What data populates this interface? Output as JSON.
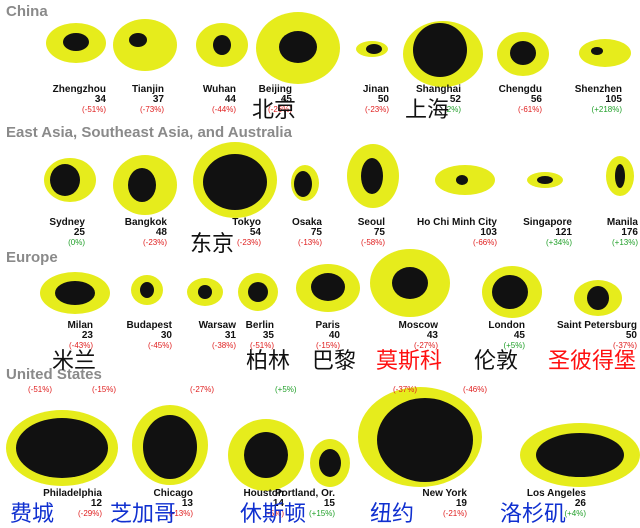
{
  "sections": {
    "china": "China",
    "asia": "East Asia, Southeast Asia, and Australia",
    "europe": "Europe",
    "us": "United States"
  },
  "cities": {
    "zhengzhou": {
      "name": "Zhengzhou",
      "value": "34",
      "change": "(-51%)",
      "trend": "neg"
    },
    "tianjin": {
      "name": "Tianjin",
      "value": "37",
      "change": "(-73%)",
      "trend": "neg"
    },
    "wuhan": {
      "name": "Wuhan",
      "value": "44",
      "change": "(-44%)",
      "trend": "neg"
    },
    "beijing": {
      "name": "Beijing",
      "value": "45",
      "change": "(-26%)",
      "trend": "neg"
    },
    "jinan": {
      "name": "Jinan",
      "value": "50",
      "change": "(-23%)",
      "trend": "neg"
    },
    "shanghai": {
      "name": "Shanghai",
      "value": "52",
      "change": "2%)",
      "trend": "pos"
    },
    "chengdu": {
      "name": "Chengdu",
      "value": "56",
      "change": "(-61%)",
      "trend": "neg"
    },
    "shenzhen": {
      "name": "Shenzhen",
      "value": "105",
      "change": "(+218%)",
      "trend": "pos"
    },
    "sydney": {
      "name": "Sydney",
      "value": "25",
      "change": "(0%)",
      "trend": "pos"
    },
    "bangkok": {
      "name": "Bangkok",
      "value": "48",
      "change": "(-23%)",
      "trend": "neg"
    },
    "tokyo": {
      "name": "Tokyo",
      "value": "54",
      "change": "(-23%)",
      "trend": "neg"
    },
    "osaka": {
      "name": "Osaka",
      "value": "75",
      "change": "(-13%)",
      "trend": "neg"
    },
    "seoul": {
      "name": "Seoul",
      "value": "75",
      "change": "(-58%)",
      "trend": "neg"
    },
    "hochiminh": {
      "name": "Ho Chi Minh City",
      "value": "103",
      "change": "(-66%)",
      "trend": "neg"
    },
    "singapore": {
      "name": "Singapore",
      "value": "121",
      "change": "(+34%)",
      "trend": "pos"
    },
    "manila": {
      "name": "Manila",
      "value": "176",
      "change": "(+13%)",
      "trend": "pos"
    },
    "milan": {
      "name": "Milan",
      "value": "23",
      "change": "(-43%)",
      "trend": "neg"
    },
    "budapest": {
      "name": "Budapest",
      "value": "30",
      "change": "(-45%)",
      "trend": "neg"
    },
    "warsaw": {
      "name": "Warsaw",
      "value": "31",
      "change": "(-38%)",
      "trend": "neg"
    },
    "berlin": {
      "name": "Berlin",
      "value": "35",
      "change": "(-51%)",
      "trend": "neg"
    },
    "paris": {
      "name": "Paris",
      "value": "40",
      "change": "(-15%)",
      "trend": "neg"
    },
    "moscow": {
      "name": "Moscow",
      "value": "43",
      "change": "(-27%)",
      "trend": "neg"
    },
    "london": {
      "name": "London",
      "value": "45",
      "change": "(+5%)",
      "trend": "pos"
    },
    "stpetersburg": {
      "name": "Saint Petersburg",
      "value": "50",
      "change": "(-37%)",
      "trend": "neg"
    },
    "philadelphia": {
      "name": "Philadelphia",
      "value": "12",
      "change": "(-29%)",
      "trend": "neg"
    },
    "chicago": {
      "name": "Chicago",
      "value": "13",
      "change": "(-13%)",
      "trend": "neg"
    },
    "houston": {
      "name": "Houston",
      "value": "14",
      "change": "(-5%)",
      "trend": "neg"
    },
    "portland": {
      "name": "Portland, Or.",
      "value": "15",
      "change": "(+15%)",
      "trend": "pos"
    },
    "newyork": {
      "name": "New York",
      "value": "19",
      "change": "(-21%)",
      "trend": "neg"
    },
    "losangeles": {
      "name": "Los Angeles",
      "value": "26",
      "change": "(+4%)",
      "trend": "pos"
    }
  },
  "us_stray_changes": [
    "(-51%)",
    "(-15%)",
    "(-27%)",
    "(+5%)",
    "(-37%)",
    "(-46%)"
  ],
  "overlays": {
    "beijing": "北京",
    "shanghai": "上海",
    "tokyo": "东京",
    "milan": "米兰",
    "berlin": "柏林",
    "paris": "巴黎",
    "moscow": "莫斯科",
    "london": "伦敦",
    "stpetersburg": "圣彼得堡",
    "philadelphia": "费城",
    "chicago": "芝加哥",
    "houston": "休斯顿",
    "newyork": "纽约",
    "losangeles": "洛杉矶"
  },
  "colors": {
    "urban": "#111111",
    "suburban": "#e6ec1c",
    "negative": "#e02020",
    "positive": "#22a02a",
    "zh_red": "#ff1010",
    "zh_blue": "#1030d0"
  }
}
